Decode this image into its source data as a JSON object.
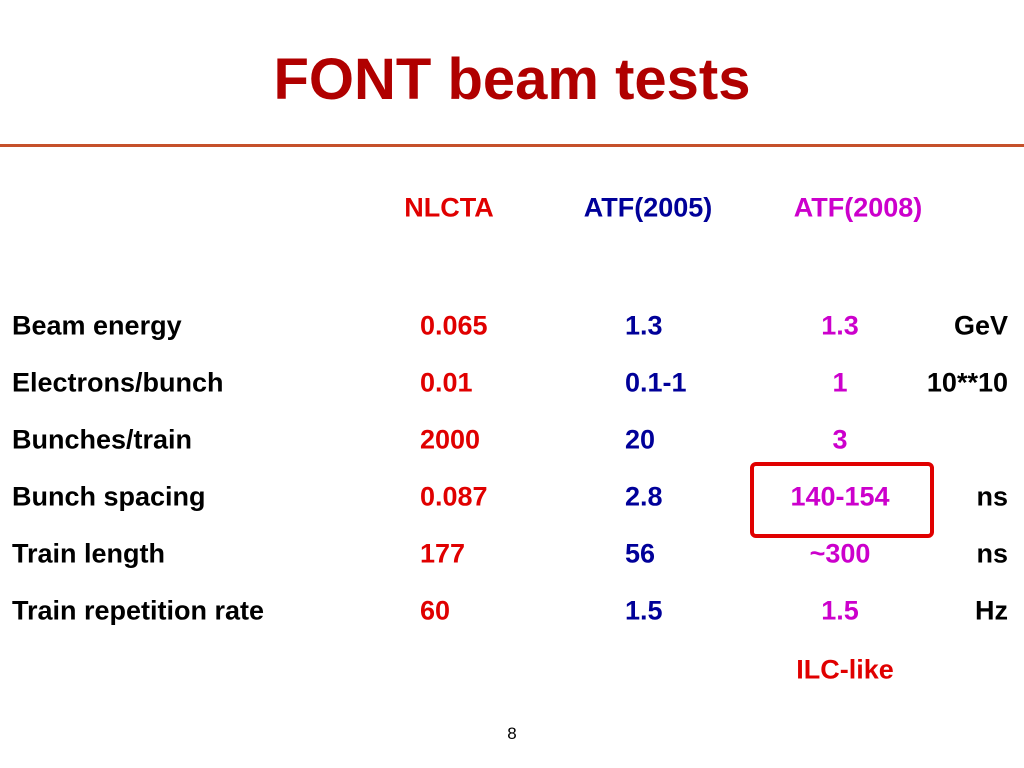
{
  "header": {
    "title": "FONT beam tests"
  },
  "table": {
    "columns": [
      "NLCTA",
      "ATF(2005)",
      "ATF(2008)"
    ],
    "rows": [
      {
        "label": "Beam energy",
        "values": [
          "0.065",
          "1.3",
          "1.3"
        ],
        "unit": "GeV"
      },
      {
        "label": "Electrons/bunch",
        "values": [
          "0.01",
          "0.1-1",
          "1"
        ],
        "unit": "10**10"
      },
      {
        "label": "Bunches/train",
        "values": [
          "2000",
          "20",
          "3"
        ]
      },
      {
        "label": "Bunch spacing",
        "values": [
          "0.087",
          "2.8",
          "140-154"
        ],
        "unit": "ns"
      },
      {
        "label": "Train length",
        "values": [
          "177",
          "56",
          "~300"
        ],
        "unit": "ns"
      },
      {
        "label": "Train repetition rate",
        "values": [
          "60",
          "1.5",
          "1.5"
        ],
        "unit": "Hz"
      }
    ]
  },
  "annotation": "ILC-like",
  "page_number": "8"
}
